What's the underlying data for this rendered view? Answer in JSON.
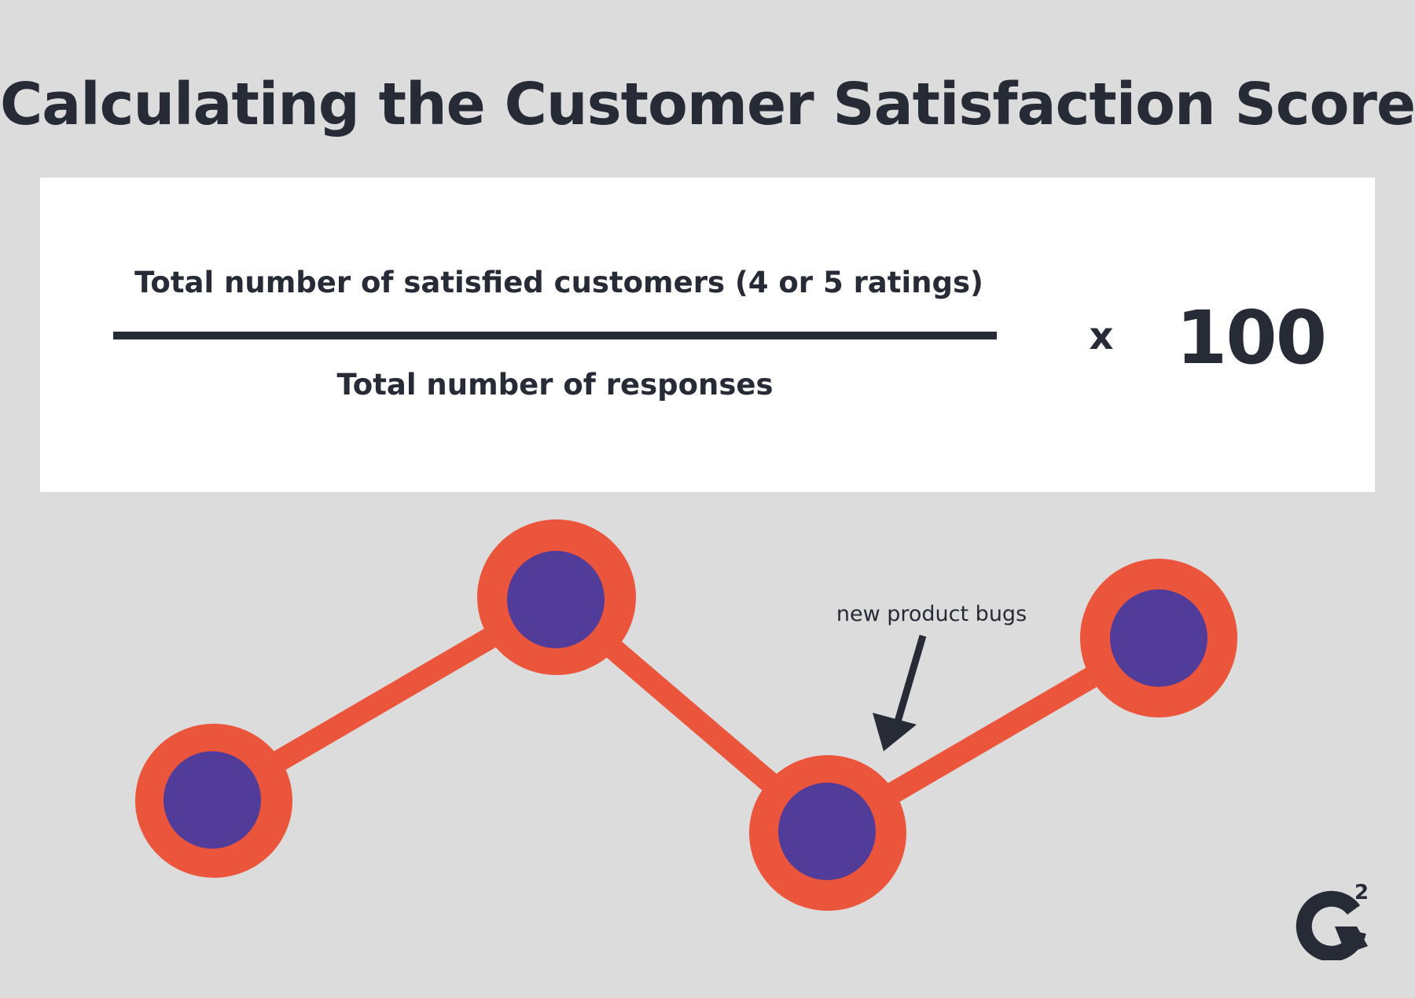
{
  "title": "Calculating the Customer Satisfaction Score",
  "formula": {
    "numerator": "Total number of satisfied customers (4 or 5 ratings)",
    "denominator": "Total number of responses",
    "operator": "x",
    "multiplier": "100"
  },
  "trend": {
    "points": [
      {
        "level": "low"
      },
      {
        "level": "high"
      },
      {
        "level": "lowest"
      },
      {
        "level": "mid-high"
      }
    ],
    "annotation": "new product bugs",
    "line_color": "#ea553b",
    "marker_fill": "#523c99"
  },
  "logo": {
    "superscript": "2",
    "icon": "g2-logo-icon"
  },
  "colors": {
    "background": "#dcdcdc",
    "card": "#ffffff",
    "text": "#262b36"
  }
}
